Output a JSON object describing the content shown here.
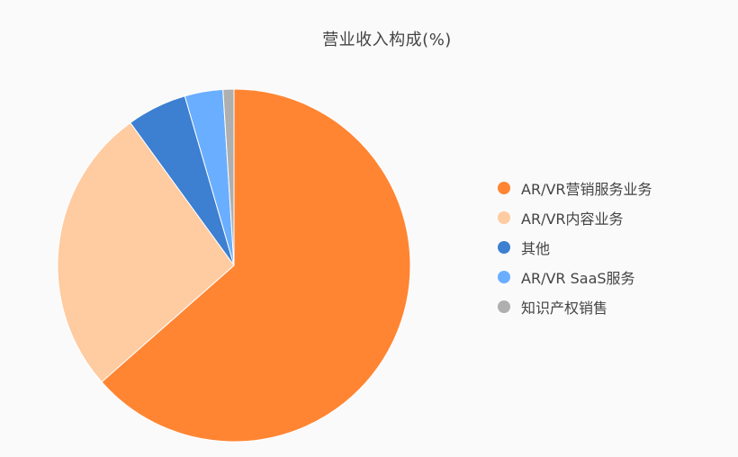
{
  "chart_data": {
    "type": "pie",
    "title": "营业收入构成(%)",
    "categories": [
      "AR/VR营销服务业务",
      "AR/VR内容业务",
      "其他",
      "AR/VR SaaS服务",
      "知识产权销售"
    ],
    "values": [
      63.5,
      26.5,
      5.5,
      3.5,
      1.0
    ],
    "colors": [
      "#FF8533",
      "#FFCBA0",
      "#3D7FD1",
      "#6AAEFF",
      "#AFAFAF"
    ],
    "legend_position": "right"
  }
}
